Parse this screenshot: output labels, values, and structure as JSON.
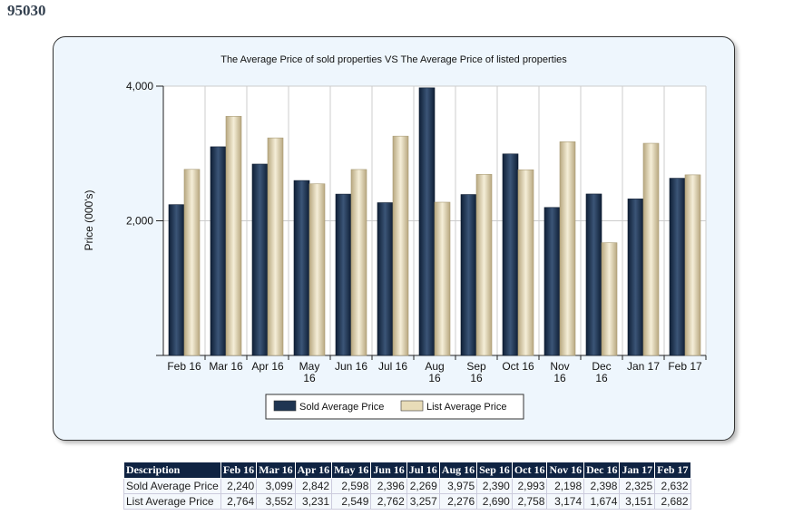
{
  "heading": "95030",
  "chart_data": {
    "type": "bar",
    "title": "The Average Price of sold properties VS The Average Price of listed properties",
    "ylabel": "Price (000's)",
    "xlabel": "",
    "ylim": [
      0,
      4000
    ],
    "yticks": [
      "2,000",
      "4,000"
    ],
    "ytick_values": [
      2000,
      4000
    ],
    "grid": true,
    "legend": "bottom",
    "categories": [
      "Feb 16",
      "Mar 16",
      "Apr 16",
      "May 16",
      "Jun 16",
      "Jul 16",
      "Aug 16",
      "Sep 16",
      "Oct 16",
      "Nov 16",
      "Dec 16",
      "Jan 17",
      "Feb 17"
    ],
    "series": [
      {
        "name": "Sold Average Price",
        "color": "#1f3552",
        "values": [
          2240,
          3099,
          2842,
          2598,
          2396,
          2269,
          3975,
          2390,
          2993,
          2198,
          2398,
          2325,
          2632
        ]
      },
      {
        "name": "List Average Price",
        "color": "#e8dcb8",
        "values": [
          2764,
          3552,
          3231,
          2549,
          2762,
          3257,
          2276,
          2690,
          2758,
          3174,
          1674,
          3151,
          2682
        ]
      }
    ]
  },
  "table": {
    "header": [
      "Description",
      "Feb 16",
      "Mar 16",
      "Apr 16",
      "May 16",
      "Jun 16",
      "Jul 16",
      "Aug 16",
      "Sep 16",
      "Oct 16",
      "Nov 16",
      "Dec 16",
      "Jan 17",
      "Feb 17"
    ],
    "rows": [
      [
        "Sold Average Price",
        "2,240",
        "3,099",
        "2,842",
        "2,598",
        "2,396",
        "2,269",
        "3,975",
        "2,390",
        "2,993",
        "2,198",
        "2,398",
        "2,325",
        "2,632"
      ],
      [
        "List Average Price",
        "2,764",
        "3,552",
        "3,231",
        "2,549",
        "2,762",
        "3,257",
        "2,276",
        "2,690",
        "2,758",
        "3,174",
        "1,674",
        "3,151",
        "2,682"
      ]
    ]
  }
}
